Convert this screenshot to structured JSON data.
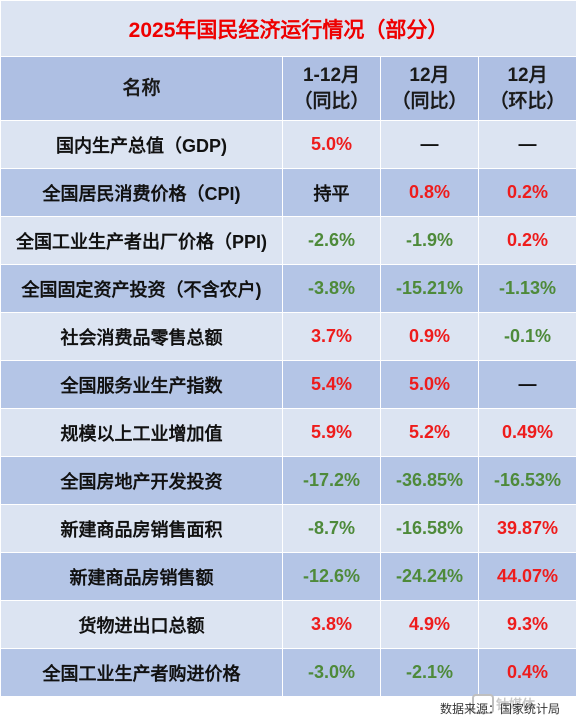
{
  "title": "2025年国民经济运行情况（部分）",
  "columns": {
    "name": "名称",
    "col1": [
      "1-12月",
      "（同比）"
    ],
    "col2": [
      "12月",
      "（同比）"
    ],
    "col3": [
      "12月",
      "（环比）"
    ]
  },
  "rows": [
    {
      "name": "国内生产总值（GDP)",
      "v1": "5.0%",
      "v2": "—",
      "v3": "—",
      "c1": "pos",
      "c2": "neu",
      "c3": "neu"
    },
    {
      "name": "全国居民消费价格（CPI)",
      "v1": "持平",
      "v2": "0.8%",
      "v3": "0.2%",
      "c1": "neu",
      "c2": "pos",
      "c3": "pos"
    },
    {
      "name": "全国工业生产者出厂价格（PPI)",
      "v1": "-2.6%",
      "v2": "-1.9%",
      "v3": "0.2%",
      "c1": "neg",
      "c2": "neg",
      "c3": "pos"
    },
    {
      "name": "全国固定资产投资（不含农户)",
      "v1": "-3.8%",
      "v2": "-15.21%",
      "v3": "-1.13%",
      "c1": "neg",
      "c2": "neg",
      "c3": "neg"
    },
    {
      "name": "社会消费品零售总额",
      "v1": "3.7%",
      "v2": "0.9%",
      "v3": "-0.1%",
      "c1": "pos",
      "c2": "pos",
      "c3": "neg"
    },
    {
      "name": "全国服务业生产指数",
      "v1": "5.4%",
      "v2": "5.0%",
      "v3": "—",
      "c1": "pos",
      "c2": "pos",
      "c3": "neu"
    },
    {
      "name": "规模以上工业增加值",
      "v1": "5.9%",
      "v2": "5.2%",
      "v3": "0.49%",
      "c1": "pos",
      "c2": "pos",
      "c3": "pos"
    },
    {
      "name": "全国房地产开发投资",
      "v1": "-17.2%",
      "v2": "-36.85%",
      "v3": "-16.53%",
      "c1": "neg",
      "c2": "neg",
      "c3": "neg"
    },
    {
      "name": "新建商品房销售面积",
      "v1": "-8.7%",
      "v2": "-16.58%",
      "v3": "39.87%",
      "c1": "neg",
      "c2": "neg",
      "c3": "pos"
    },
    {
      "name": "新建商品房销售额",
      "v1": "-12.6%",
      "v2": "-24.24%",
      "v3": "44.07%",
      "c1": "neg",
      "c2": "neg",
      "c3": "pos"
    },
    {
      "name": "货物进出口总额",
      "v1": "3.8%",
      "v2": "4.9%",
      "v3": "9.3%",
      "c1": "pos",
      "c2": "pos",
      "c3": "pos"
    },
    {
      "name": "全国工业生产者购进价格",
      "v1": "-3.0%",
      "v2": "-2.1%",
      "v3": "0.4%",
      "c1": "neg",
      "c2": "neg",
      "c3": "pos"
    }
  ],
  "colors": {
    "positive": "#ee1c1c",
    "negative": "#4e8a3a",
    "title": "#ee0000"
  },
  "footer": {
    "source": "数据来源：国家统计局",
    "logo_text": "钛媒体"
  }
}
